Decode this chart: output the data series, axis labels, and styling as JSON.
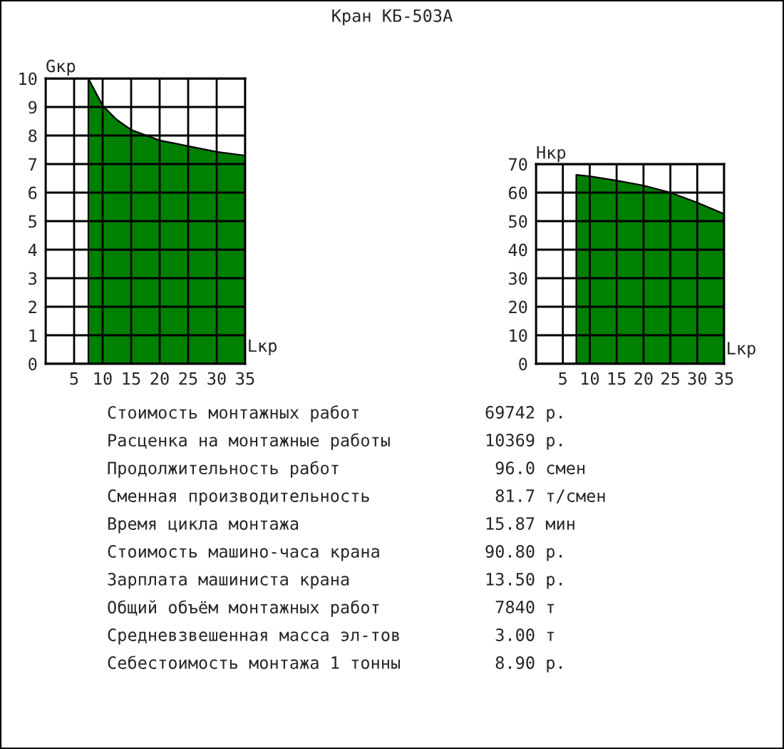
{
  "chart_data": [
    {
      "type": "area",
      "xlabel": "Lкр",
      "ylabel": "Gкр",
      "x": [
        7.5,
        10,
        12.5,
        15,
        20,
        25,
        30,
        35
      ],
      "series": [
        {
          "color": "#008000",
          "values": [
            10,
            9.05,
            8.55,
            8.2,
            7.83,
            7.63,
            7.43,
            7.3
          ]
        }
      ],
      "xlim": [
        0,
        35
      ],
      "xticks": [
        {
          "value": 0,
          "label": null
        },
        5,
        10,
        15,
        20,
        25,
        30,
        35
      ],
      "ylim": [
        0,
        10
      ],
      "yticks": [
        0,
        1,
        2,
        3,
        4,
        5,
        6,
        7,
        8,
        9,
        10
      ],
      "grid": true
    },
    {
      "type": "area",
      "xlabel": "Lкр",
      "ylabel": "Hкр",
      "x": [
        7.5,
        10,
        15,
        20,
        25,
        30,
        35
      ],
      "series": [
        {
          "color": "#008000",
          "values": [
            66.2,
            65.7,
            64.2,
            62.5,
            60,
            56.5,
            52.5
          ]
        }
      ],
      "xlim": [
        0,
        35
      ],
      "xticks": [
        {
          "value": 0,
          "label": null
        },
        5,
        10,
        15,
        20,
        25,
        30,
        35
      ],
      "ylim": [
        0,
        70
      ],
      "yticks": [
        0,
        10,
        20,
        30,
        40,
        50,
        60,
        70
      ],
      "grid": true
    },
    {
      "type": "other",
      "title": "Кран КБ-503А",
      "annotations": [
        "Стоимость монтажных работ",
        "69742 р.",
        "Расценка на монтажные работы",
        "10369 р.",
        "Продолжительность работ",
        " 96.0 смен",
        "Сменная производительность",
        " 81.7 т/смен",
        "Время цикла монтажа",
        "15.87 мин",
        "Стоимость машино-часа крана",
        "90.80 р.",
        "Зарплата машиниста крана",
        "13.50 р.",
        "Общий объём монтажных работ",
        " 7840 т",
        "Средневзвешенная масса эл-тов",
        " 3.00 т",
        "Себестоимость монтажа 1 тонны",
        " 8.90 р."
      ]
    }
  ]
}
